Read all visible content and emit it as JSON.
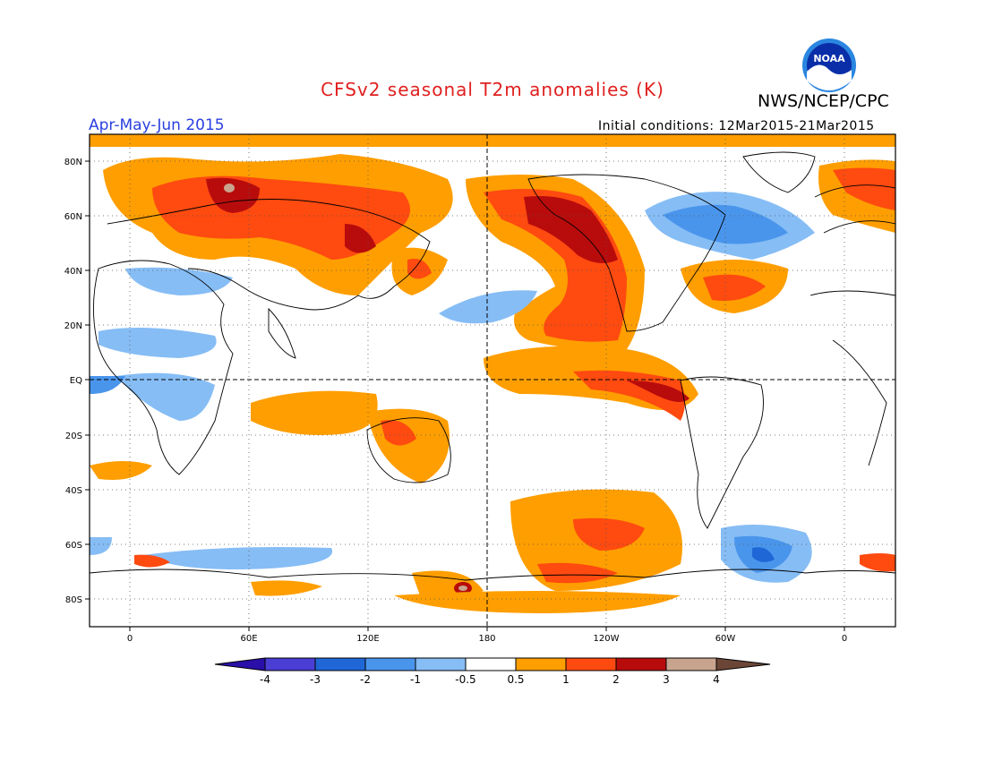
{
  "header": {
    "title": "CFSv2 seasonal T2m anomalies (K)",
    "agency": "NWS/NCEP/CPC",
    "period": "Apr-May-Jun 2015",
    "initial_conditions": "Initial conditions: 12Mar2015-21Mar2015"
  },
  "logo": {
    "icon": "noaa-logo-icon",
    "text": "NOAA"
  },
  "map": {
    "lat_labels": [
      "80N",
      "60N",
      "40N",
      "20N",
      "EQ",
      "20S",
      "40S",
      "60S",
      "80S"
    ],
    "lon_labels": [
      "0",
      "60E",
      "120E",
      "180",
      "120W",
      "60W",
      "0"
    ]
  },
  "colorbar": {
    "labels": [
      "-4",
      "-3",
      "-2",
      "-1",
      "-0.5",
      "0.5",
      "1",
      "2",
      "3",
      "4"
    ],
    "colors": [
      "#2a0fa8",
      "#4b3ed4",
      "#1f67d6",
      "#4a95ec",
      "#86bdf5",
      "#ffffff",
      "#ff9e00",
      "#ff4a10",
      "#b80c0c",
      "#c8a48f",
      "#6b4637"
    ]
  }
}
